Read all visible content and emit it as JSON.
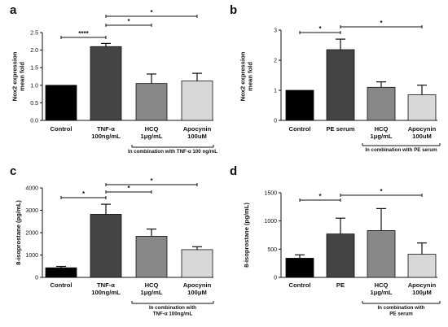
{
  "colors": {
    "control": "#000000",
    "treatment": "#444444",
    "hcq": "#888888",
    "apocynin": "#d8d8d8"
  },
  "chart_data": [
    {
      "type": "bar",
      "panel": "a",
      "categories": [
        [
          "Control"
        ],
        [
          "TNF-α",
          "100ng/mL"
        ],
        [
          "HCQ",
          "1μg/mL"
        ],
        [
          "Apocynin",
          "100uM"
        ]
      ],
      "values": [
        1.0,
        2.1,
        1.05,
        1.12
      ],
      "errors": [
        0,
        0.09,
        0.27,
        0.22
      ],
      "ylabel": [
        "Nox2 expression",
        "mean fold"
      ],
      "ylim": [
        0,
        2.5
      ],
      "yticks": [
        "0.0",
        "0.5",
        "1.0",
        "1.5",
        "2.0",
        "2.5"
      ],
      "annotation": [
        "In combination with TNF-α 100 ng/mL"
      ],
      "significance": [
        {
          "from": 0,
          "to": 1,
          "label": "****"
        },
        {
          "from": 1,
          "to": 2,
          "label": "*"
        },
        {
          "from": 1,
          "to": 3,
          "label": "*"
        }
      ]
    },
    {
      "type": "bar",
      "panel": "b",
      "categories": [
        [
          "Control"
        ],
        [
          "PE serum"
        ],
        [
          "HCQ",
          "1μg/mL"
        ],
        [
          "Apocynin",
          "100uM"
        ]
      ],
      "values": [
        1.0,
        2.35,
        1.1,
        0.85
      ],
      "errors": [
        0,
        0.35,
        0.18,
        0.32
      ],
      "ylabel": [
        "Nox2 expression",
        "mean fold"
      ],
      "ylim": [
        0,
        3
      ],
      "yticks": [
        "0",
        "1",
        "2",
        "3"
      ],
      "annotation": [
        "In combination with PE serum"
      ],
      "significance": [
        {
          "from": 0,
          "to": 1,
          "label": "*"
        },
        {
          "from": 1,
          "to": 3,
          "label": "*"
        }
      ]
    },
    {
      "type": "bar",
      "panel": "c",
      "categories": [
        [
          "Control"
        ],
        [
          "TNF-α",
          "100ng/mL"
        ],
        [
          "HCQ",
          "1μg/mL"
        ],
        [
          "Apocynin",
          "100μM"
        ]
      ],
      "values": [
        430,
        2820,
        1840,
        1240
      ],
      "errors": [
        60,
        450,
        320,
        130
      ],
      "ylabel": [
        "8-isoprostane (pg/mL)"
      ],
      "ylim": [
        0,
        4000
      ],
      "yticks": [
        "0",
        "1000",
        "2000",
        "3000",
        "4000"
      ],
      "annotation": [
        "In combination with",
        "TNF-α 100ng/mL"
      ],
      "significance": [
        {
          "from": 0,
          "to": 1,
          "label": "*"
        },
        {
          "from": 1,
          "to": 2,
          "label": "*"
        },
        {
          "from": 1,
          "to": 3,
          "label": "*"
        }
      ]
    },
    {
      "type": "bar",
      "panel": "d",
      "categories": [
        [
          "Control"
        ],
        [
          "PE"
        ],
        [
          "HCQ",
          "1μg/mL"
        ],
        [
          "Apocynin",
          "100μM"
        ]
      ],
      "values": [
        340,
        770,
        830,
        410
      ],
      "errors": [
        60,
        280,
        390,
        200
      ],
      "ylabel": [
        "8-isoprostane (pg/mL)"
      ],
      "ylim": [
        0,
        1500
      ],
      "yticks": [
        "0",
        "500",
        "1000",
        "1500"
      ],
      "annotation": [
        "In combination with",
        "PE serum"
      ],
      "significance": [
        {
          "from": 0,
          "to": 1,
          "label": "*"
        },
        {
          "from": 1,
          "to": 3,
          "label": "*"
        }
      ]
    }
  ]
}
